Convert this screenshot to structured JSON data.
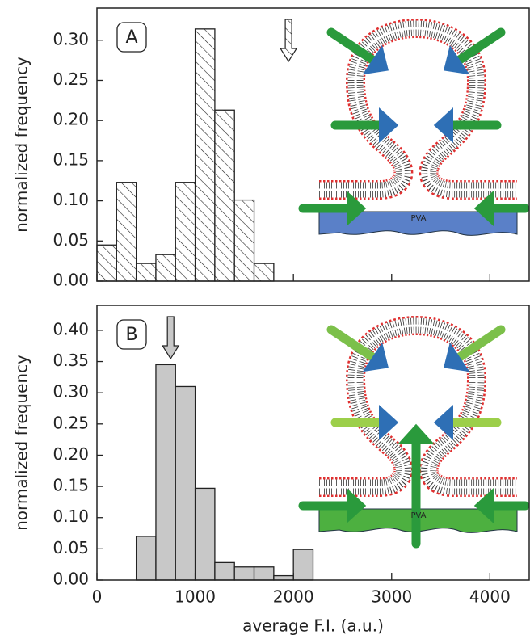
{
  "chart_data": [
    {
      "type": "histogram",
      "panel_label": "A",
      "ylabel": "normalized frequency",
      "bins": [
        0,
        200,
        400,
        600,
        800,
        1000,
        1200,
        1400,
        1600,
        1800
      ],
      "values": [
        0.045,
        0.123,
        0.022,
        0.033,
        0.123,
        0.314,
        0.213,
        0.101,
        0.022
      ],
      "style": "hatched",
      "color": "#ffffff",
      "xlim": [
        0,
        4400
      ],
      "xticks": [
        0,
        1000,
        2000,
        3000,
        4000
      ],
      "show_xtick_labels": false,
      "ylim": [
        0,
        0.34
      ],
      "yticks": [
        {
          "value": 0,
          "label": "0.00"
        },
        {
          "value": 0.05,
          "label": "0.05"
        },
        {
          "value": 0.1,
          "label": "0.10"
        },
        {
          "value": 0.15,
          "label": "0.15"
        },
        {
          "value": 0.2,
          "label": "0.20"
        },
        {
          "value": 0.25,
          "label": "0.25"
        },
        {
          "value": 0.3,
          "label": "0.30"
        }
      ],
      "arrow_at": 1950,
      "illustration_label": "PVA"
    },
    {
      "type": "histogram",
      "panel_label": "B",
      "ylabel": "normalized frequency",
      "xlabel": "average F.I. (a.u.)",
      "bins": [
        400,
        600,
        800,
        1000,
        1200,
        1400,
        1600,
        1800,
        2000,
        2200
      ],
      "values": [
        0.07,
        0.345,
        0.31,
        0.147,
        0.028,
        0.021,
        0.021,
        0.007,
        0.049
      ],
      "style": "solid",
      "color": "#c8c8c8",
      "xlim": [
        0,
        4400
      ],
      "xticks": [
        0,
        1000,
        2000,
        3000,
        4000
      ],
      "show_xtick_labels": true,
      "ylim": [
        0,
        0.44
      ],
      "yticks": [
        {
          "value": 0,
          "label": "0.00"
        },
        {
          "value": 0.05,
          "label": "0.05"
        },
        {
          "value": 0.1,
          "label": "0.10"
        },
        {
          "value": 0.15,
          "label": "0.15"
        },
        {
          "value": 0.2,
          "label": "0.20"
        },
        {
          "value": 0.25,
          "label": "0.25"
        },
        {
          "value": 0.3,
          "label": "0.30"
        },
        {
          "value": 0.35,
          "label": "0.35"
        },
        {
          "value": 0.4,
          "label": "0.40"
        }
      ],
      "arrow_at": 750,
      "illustration_label": "PVA"
    }
  ]
}
